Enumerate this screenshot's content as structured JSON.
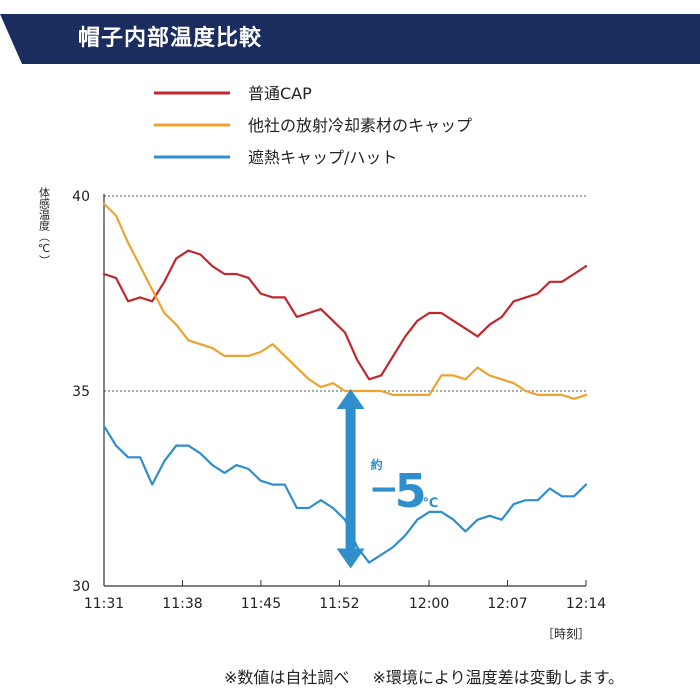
{
  "header": {
    "title": "帽子内部温度比較"
  },
  "chart_data": {
    "type": "line",
    "title": "",
    "ylabel": "体感温度（℃）",
    "xlabel": "［時刻］",
    "ylim": [
      30,
      40
    ],
    "xlim": [
      0,
      43
    ],
    "y_ticks": [
      30,
      35,
      40
    ],
    "y_gridlines": [
      35,
      40
    ],
    "x_ticks": [
      {
        "x": 0,
        "label": "11:31"
      },
      {
        "x": 7,
        "label": "11:38"
      },
      {
        "x": 14,
        "label": "11:45"
      },
      {
        "x": 21,
        "label": "11:52"
      },
      {
        "x": 29,
        "label": "12:00"
      },
      {
        "x": 36,
        "label": "12:07"
      },
      {
        "x": 43,
        "label": "12:14"
      }
    ],
    "legend_position": "top",
    "series": [
      {
        "name": "普通CAP",
        "color": "#c1272d",
        "values": [
          38.0,
          37.9,
          37.3,
          37.4,
          37.3,
          37.8,
          38.4,
          38.6,
          38.5,
          38.2,
          38.0,
          38.0,
          37.9,
          37.5,
          37.4,
          37.4,
          36.9,
          37.0,
          37.1,
          36.8,
          36.5,
          35.8,
          35.3,
          35.4,
          35.9,
          36.4,
          36.8,
          37.0,
          37.0,
          36.8,
          36.6,
          36.4,
          36.7,
          36.9,
          37.3,
          37.4,
          37.5,
          37.8,
          37.8,
          38.0,
          38.2
        ]
      },
      {
        "name": "他社の放射冷却素材のキャップ",
        "color": "#eba42f",
        "values": [
          39.8,
          39.5,
          38.8,
          38.2,
          37.6,
          37.0,
          36.7,
          36.3,
          36.2,
          36.1,
          35.9,
          35.9,
          35.9,
          36.0,
          36.2,
          35.9,
          35.6,
          35.3,
          35.1,
          35.2,
          35.0,
          35.0,
          35.0,
          35.0,
          34.9,
          34.9,
          34.9,
          34.9,
          35.4,
          35.4,
          35.3,
          35.6,
          35.4,
          35.3,
          35.2,
          35.0,
          34.9,
          34.9,
          34.9,
          34.8,
          34.9
        ]
      },
      {
        "name": "遮熱キャップ/ハット",
        "color": "#2f8ecb",
        "values": [
          34.1,
          33.6,
          33.3,
          33.3,
          32.6,
          33.2,
          33.6,
          33.6,
          33.4,
          33.1,
          32.9,
          33.1,
          33.0,
          32.7,
          32.6,
          32.6,
          32.0,
          32.0,
          32.2,
          32.0,
          31.7,
          31.0,
          30.6,
          30.8,
          31.0,
          31.3,
          31.7,
          31.9,
          31.9,
          31.7,
          31.4,
          31.7,
          31.8,
          31.7,
          32.1,
          32.2,
          32.2,
          32.5,
          32.3,
          32.3,
          32.6
        ]
      }
    ],
    "annotation": {
      "type": "double-arrow",
      "x": 22,
      "from": 35.0,
      "to": 30.5,
      "prefix": "約",
      "sign": "−",
      "value": "5",
      "unit": "℃",
      "color": "#2f8ecb"
    }
  },
  "footnote": {
    "note1": "※数値は自社調べ",
    "note2": "※環境により温度差は変動します。"
  }
}
